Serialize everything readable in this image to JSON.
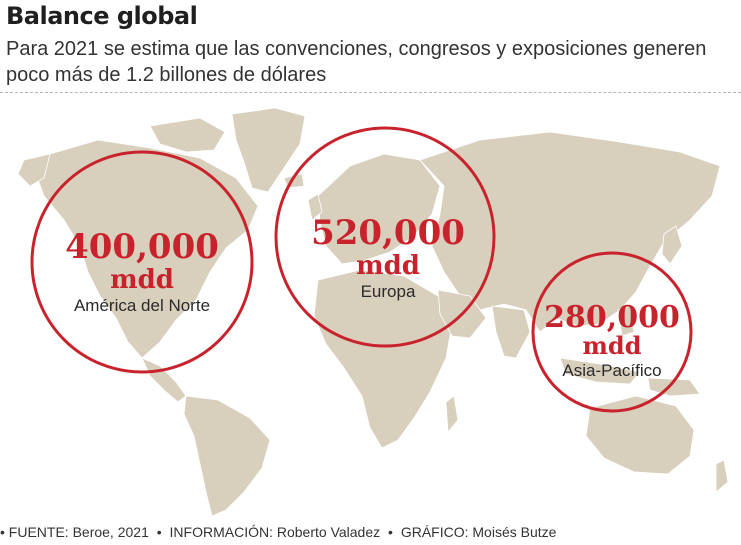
{
  "title": "Balance global",
  "subtitle": "Para 2021 se estima que las convenciones, congresos y exposiciones generen poco más de 1.2 billones de dólares",
  "regions": [
    {
      "name": "América del Norte",
      "value": "400,000",
      "unit": "mdd"
    },
    {
      "name": "Europa",
      "value": "520,000",
      "unit": "mdd"
    },
    {
      "name": "Asia-Pacífico",
      "value": "280,000",
      "unit": "mdd"
    }
  ],
  "footer": {
    "bullet": "•",
    "source": "FUENTE: Beroe, 2021",
    "information": "INFORMACIÓN: Roberto Valadez",
    "graphic": "GRÁFICO: Moisés Butze"
  },
  "colors": {
    "land": "#d9cfbd",
    "circle": "#c8232c",
    "value_text": "#c8232c"
  }
}
